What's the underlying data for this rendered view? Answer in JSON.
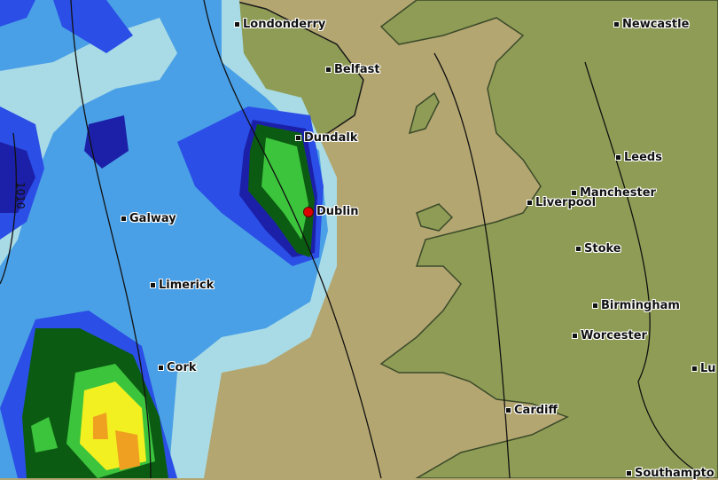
{
  "map": {
    "colors": {
      "sea": "#b4a671",
      "land": "#8f9c55",
      "rain_light": "#a9dbe6",
      "rain_mid": "#4aa0e6",
      "rain_blue": "#2a4ee6",
      "rain_dark": "#1c20a8",
      "rain_darkgreen": "#0b5c12",
      "rain_green": "#3cc43c",
      "rain_yellow": "#f2f020",
      "rain_orange": "#f0a020",
      "highlight_city": "#e00000"
    },
    "isobar_label": "1010",
    "cities": [
      {
        "name": "Londonderry"
      },
      {
        "name": "Belfast"
      },
      {
        "name": "Dundalk"
      },
      {
        "name": "Dublin",
        "highlight": true
      },
      {
        "name": "Galway"
      },
      {
        "name": "Limerick"
      },
      {
        "name": "Cork"
      },
      {
        "name": "Newcastle"
      },
      {
        "name": "Leeds"
      },
      {
        "name": "Manchester"
      },
      {
        "name": "Liverpool"
      },
      {
        "name": "Stoke"
      },
      {
        "name": "Birmingham"
      },
      {
        "name": "Worcester"
      },
      {
        "name": "Cardiff"
      },
      {
        "name": "Lu"
      },
      {
        "name": "Southampto"
      }
    ]
  }
}
